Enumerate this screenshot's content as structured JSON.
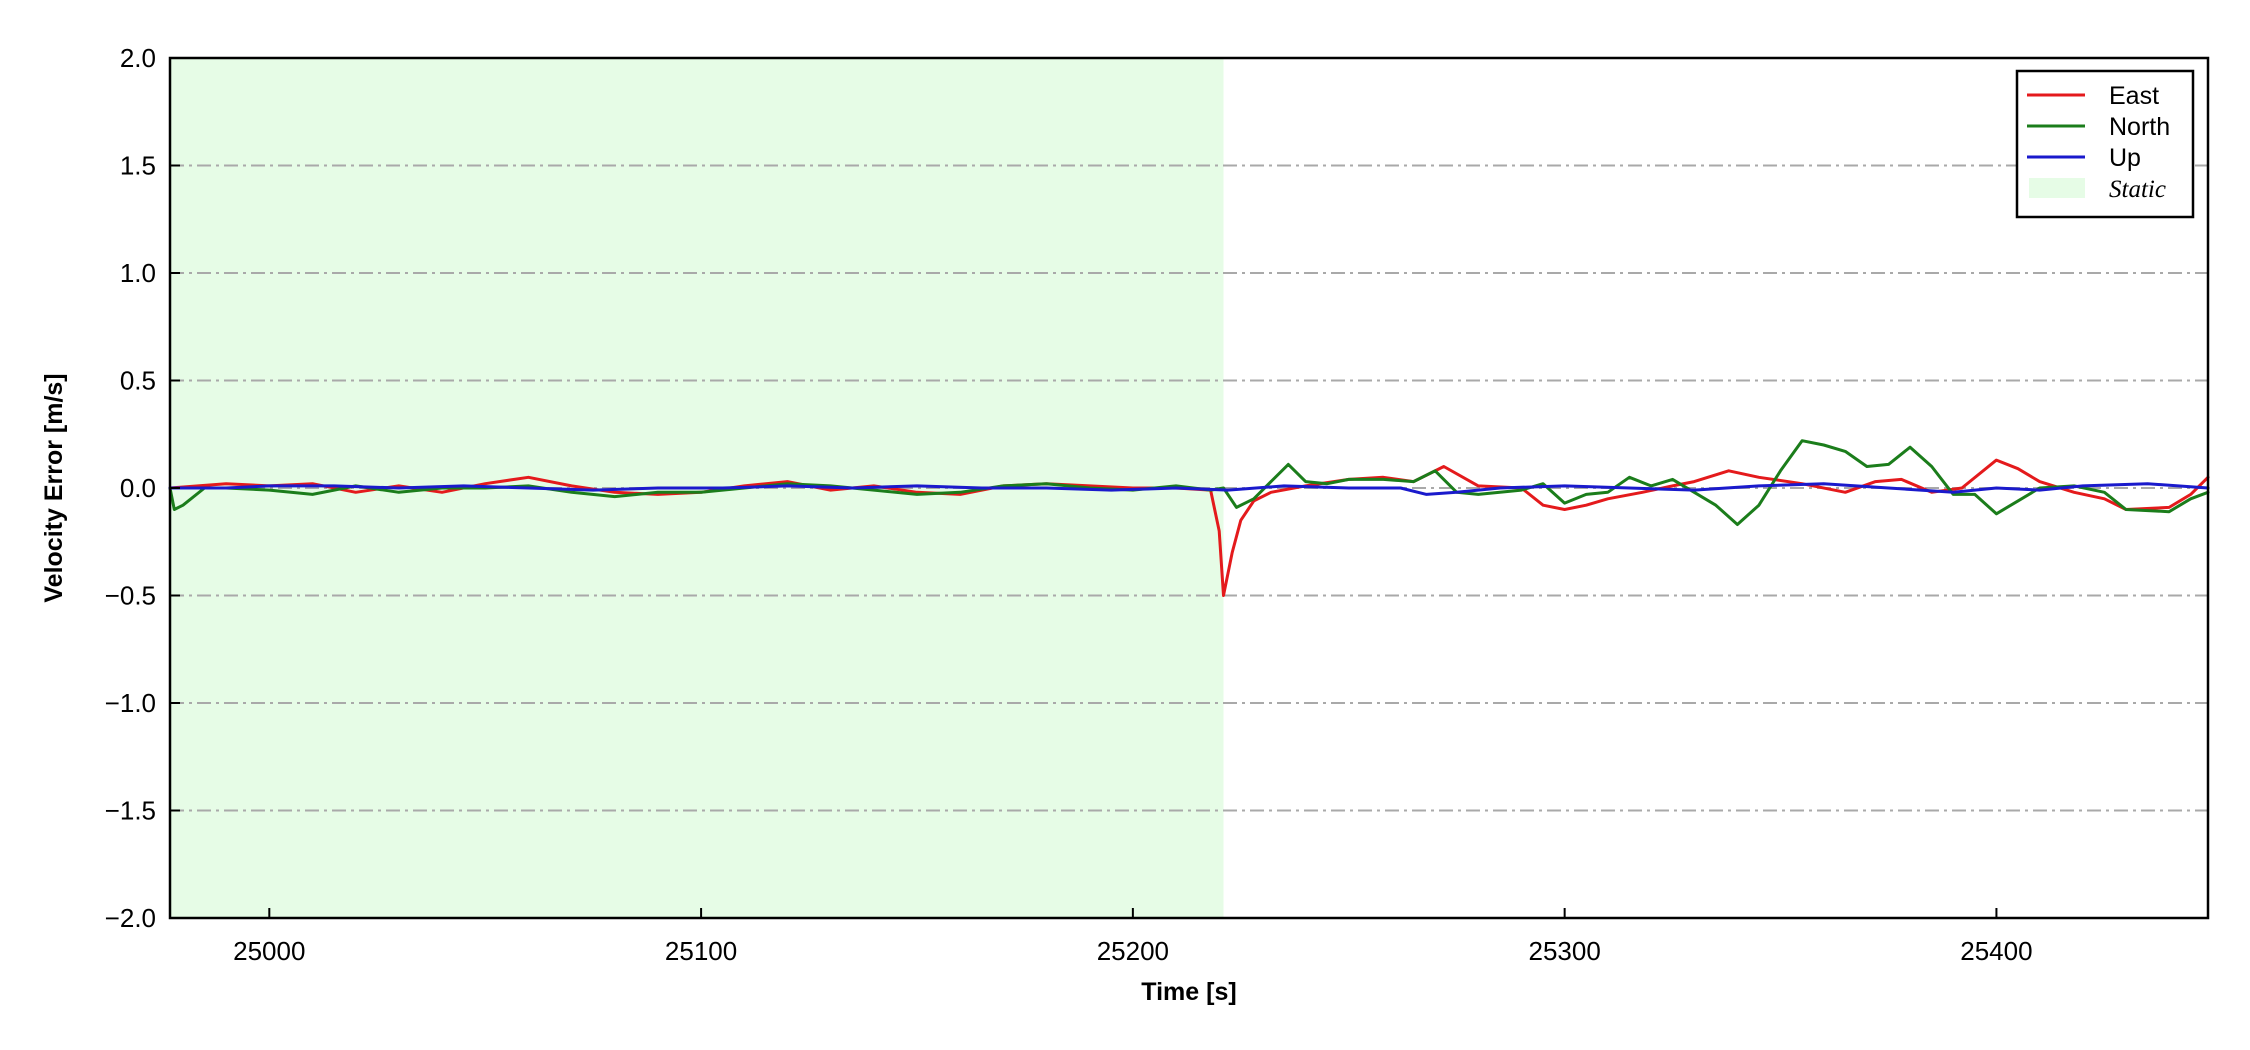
{
  "chart_data": {
    "type": "line",
    "xlabel": "Time [s]",
    "ylabel": "Velocity Error [m/s]",
    "xlim": [
      24977,
      25449
    ],
    "ylim": [
      -2.0,
      2.0
    ],
    "x_ticks": [
      25000,
      25100,
      25200,
      25300,
      25400
    ],
    "y_ticks": [
      -2.0,
      -1.5,
      -1.0,
      -0.5,
      0.0,
      0.5,
      1.0,
      1.5,
      2.0
    ],
    "y_tick_labels": [
      "−2.0",
      "−1.5",
      "−1.0",
      "−0.5",
      "0.0",
      "0.5",
      "1.0",
      "1.5",
      "2.0"
    ],
    "grid": "horizontal dash-dot",
    "legend_position": "top-right",
    "static_region": {
      "name": "Static",
      "x_start": 24977,
      "x_end": 25221,
      "color": "#e6fce6"
    },
    "series": [
      {
        "name": "East",
        "color": "#e41a1c",
        "x": [
          24977,
          24990,
          25000,
          25010,
          25020,
          25030,
          25040,
          25050,
          25060,
          25070,
          25080,
          25090,
          25100,
          25110,
          25120,
          25130,
          25140,
          25150,
          25160,
          25170,
          25180,
          25190,
          25200,
          25210,
          25218,
          25220,
          25221,
          25223,
          25225,
          25228,
          25232,
          25240,
          25250,
          25258,
          25265,
          25272,
          25280,
          25290,
          25295,
          25300,
          25305,
          25310,
          25318,
          25325,
          25330,
          25338,
          25345,
          25355,
          25365,
          25372,
          25378,
          25385,
          25392,
          25400,
          25405,
          25410,
          25418,
          25425,
          25430,
          25440,
          25445,
          25449
        ],
        "y": [
          0.0,
          0.02,
          0.01,
          0.02,
          -0.02,
          0.01,
          -0.02,
          0.02,
          0.05,
          0.01,
          -0.02,
          -0.03,
          -0.02,
          0.01,
          0.03,
          -0.01,
          0.01,
          -0.02,
          -0.03,
          0.01,
          0.02,
          0.01,
          0.0,
          0.0,
          -0.01,
          -0.2,
          -0.5,
          -0.3,
          -0.15,
          -0.06,
          -0.02,
          0.01,
          0.04,
          0.05,
          0.03,
          0.1,
          0.01,
          0.0,
          -0.08,
          -0.1,
          -0.08,
          -0.05,
          -0.02,
          0.01,
          0.03,
          0.08,
          0.05,
          0.02,
          -0.02,
          0.03,
          0.04,
          -0.02,
          0.0,
          0.13,
          0.09,
          0.03,
          -0.02,
          -0.05,
          -0.1,
          -0.09,
          -0.03,
          0.05
        ]
      },
      {
        "name": "North",
        "color": "#1b7d1b",
        "x": [
          24977,
          24978,
          24980,
          24985,
          24990,
          25000,
          25010,
          25020,
          25030,
          25040,
          25050,
          25060,
          25070,
          25080,
          25090,
          25100,
          25110,
          25120,
          25130,
          25140,
          25150,
          25160,
          25170,
          25180,
          25190,
          25200,
          25210,
          25218,
          25221,
          25224,
          25228,
          25232,
          25236,
          25240,
          25245,
          25250,
          25258,
          25265,
          25270,
          25275,
          25280,
          25290,
          25295,
          25300,
          25305,
          25310,
          25315,
          25320,
          25325,
          25330,
          25335,
          25340,
          25345,
          25350,
          25355,
          25360,
          25365,
          25370,
          25375,
          25380,
          25385,
          25390,
          25395,
          25400,
          25405,
          25410,
          25418,
          25425,
          25430,
          25440,
          25445,
          25449
        ],
        "y": [
          0.0,
          -0.1,
          -0.08,
          0.0,
          0.0,
          -0.01,
          -0.03,
          0.01,
          -0.02,
          0.0,
          0.0,
          0.01,
          -0.02,
          -0.04,
          -0.02,
          -0.02,
          0.0,
          0.02,
          0.01,
          -0.01,
          -0.03,
          -0.02,
          0.01,
          0.02,
          0.0,
          -0.01,
          0.01,
          -0.01,
          0.0,
          -0.09,
          -0.05,
          0.03,
          0.11,
          0.03,
          0.02,
          0.04,
          0.04,
          0.03,
          0.08,
          -0.02,
          -0.03,
          -0.01,
          0.02,
          -0.07,
          -0.03,
          -0.02,
          0.05,
          0.01,
          0.04,
          -0.02,
          -0.08,
          -0.17,
          -0.08,
          0.08,
          0.22,
          0.2,
          0.17,
          0.1,
          0.11,
          0.19,
          0.1,
          -0.03,
          -0.03,
          -0.12,
          -0.06,
          0.0,
          0.01,
          -0.02,
          -0.1,
          -0.11,
          -0.05,
          -0.02
        ]
      },
      {
        "name": "Up",
        "color": "#1a1acc",
        "x": [
          24977,
          24990,
          25000,
          25015,
          25030,
          25045,
          25060,
          25075,
          25090,
          25105,
          25120,
          25135,
          25150,
          25165,
          25180,
          25195,
          25210,
          25222,
          25235,
          25250,
          25262,
          25268,
          25275,
          25285,
          25300,
          25315,
          25330,
          25345,
          25360,
          25375,
          25390,
          25400,
          25410,
          25420,
          25435,
          25449
        ],
        "y": [
          0.0,
          0.0,
          0.01,
          0.01,
          0.0,
          0.01,
          0.0,
          -0.01,
          0.0,
          0.0,
          0.01,
          0.0,
          0.01,
          0.0,
          0.0,
          -0.01,
          0.0,
          -0.01,
          0.01,
          0.0,
          0.0,
          -0.03,
          -0.02,
          0.0,
          0.01,
          0.0,
          -0.01,
          0.01,
          0.02,
          0.0,
          -0.02,
          0.0,
          -0.01,
          0.01,
          0.02,
          0.0
        ]
      }
    ]
  }
}
